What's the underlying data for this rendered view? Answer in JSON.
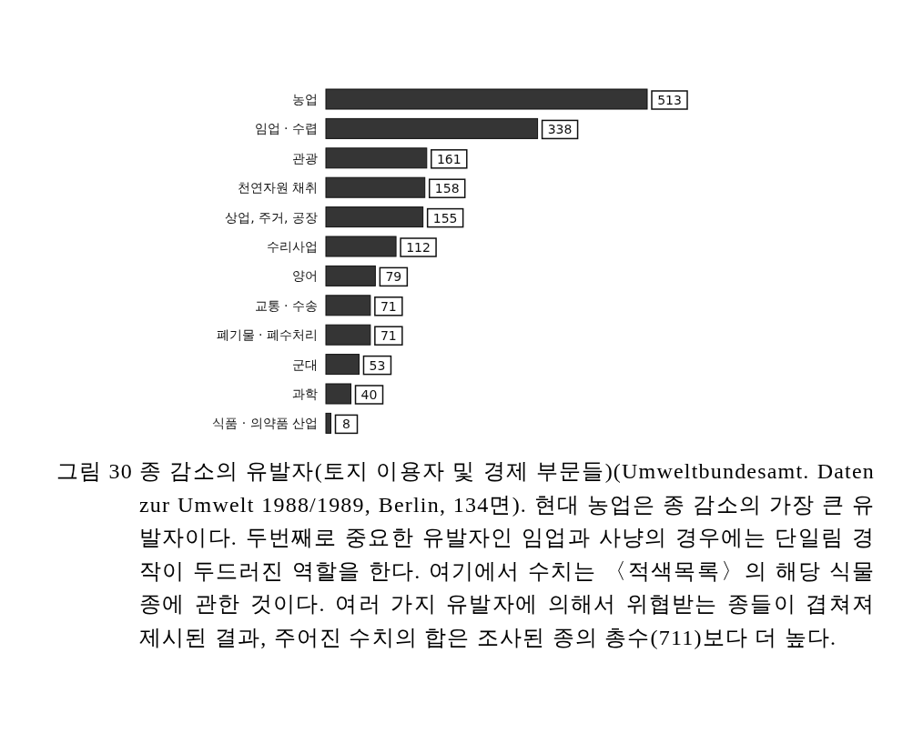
{
  "chart_data": {
    "type": "bar",
    "orientation": "horizontal",
    "data_labels": true,
    "categories": [
      "농업",
      "임업 · 수렵",
      "관광",
      "천연자원 채취",
      "상업, 주거, 공장",
      "수리사업",
      "양어",
      "교통 · 수송",
      "폐기물 · 폐수처리",
      "군대",
      "과학",
      "식품 · 의약품 산업"
    ],
    "values": [
      513,
      338,
      161,
      158,
      155,
      112,
      79,
      71,
      71,
      53,
      40,
      8
    ],
    "color": "#353535",
    "annotations": [
      "그림 30",
      "종 감소의 유발자(토지 이용자 및 경제 부문들)(Umweltbundesamt. Daten zur Umwelt 1988/1989, Berlin, 134면). 현대 농업은 종 감소의 가장 큰 유발자이다. 두번째로 중요한 유발자인 임업과 사냥의 경우에는 단일림 경작이 두드러진 역할을 한다. 여기에서 수치는 〈적색목록〉의 해당 식물종에 관한 것이다. 여러 가지 유발자에 의해서 위협받는 종들이 겹쳐져 제시된 결과, 주어진 수치의 합은 조사된 종의 총수(711)보다 더 높다."
    ]
  }
}
